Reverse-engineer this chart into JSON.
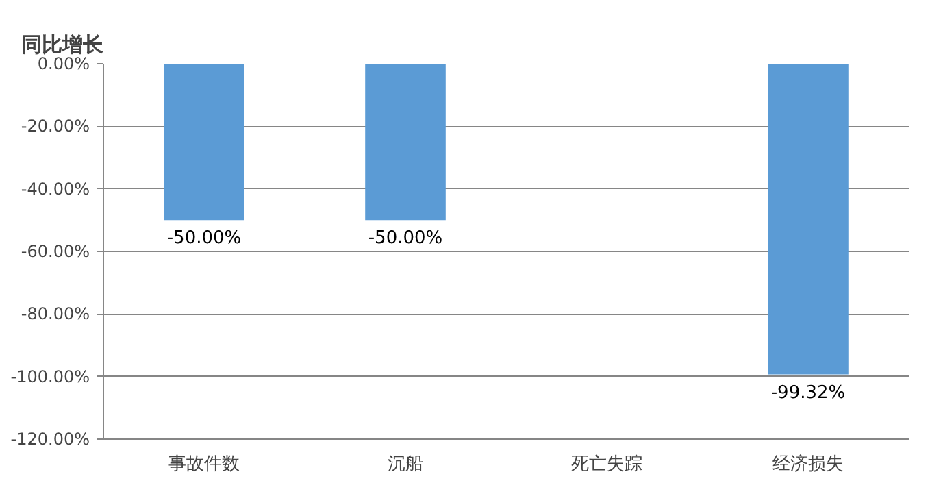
{
  "chart_data": {
    "type": "bar",
    "title": "同比增长",
    "categories": [
      "事故件数",
      "沉船",
      "死亡失踪",
      "经济损失"
    ],
    "values": [
      -50,
      -50,
      0,
      -99.32
    ],
    "value_labels": [
      "-50.00%",
      "-50.00%",
      null,
      "-99.32%"
    ],
    "color": "#5b9bd5",
    "ylim": [
      -120,
      0
    ],
    "yticks": [
      {
        "value": 0,
        "label": "0.00%"
      },
      {
        "value": -20,
        "label": "-20.00%"
      },
      {
        "value": -40,
        "label": "-40.00%"
      },
      {
        "value": -60,
        "label": "-60.00%"
      },
      {
        "value": -80,
        "label": "-80.00%"
      },
      {
        "value": -100,
        "label": "-100.00%"
      },
      {
        "value": -120,
        "label": "-120.00%"
      }
    ],
    "grid": "y"
  }
}
